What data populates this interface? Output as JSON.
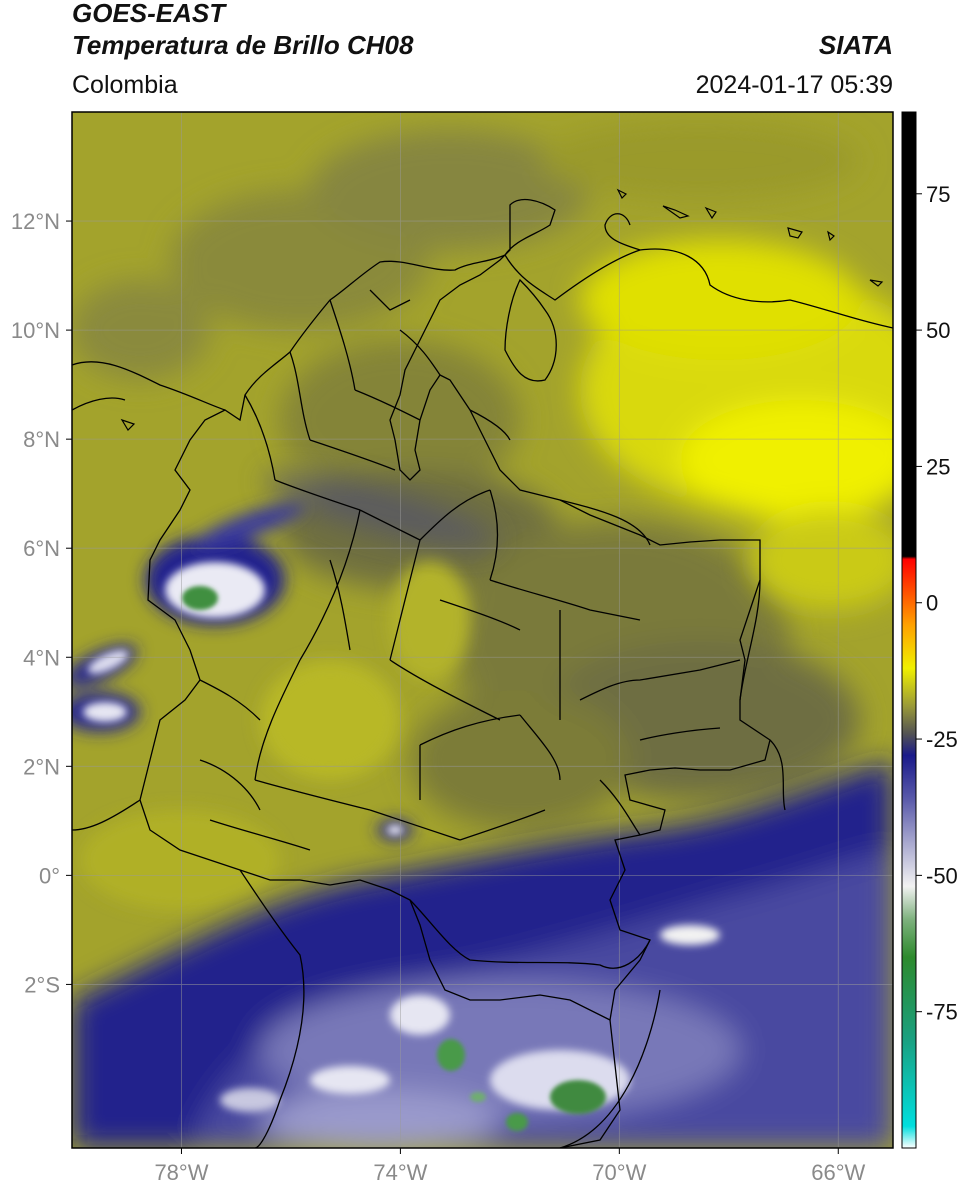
{
  "header": {
    "title_line1": "GOES-EAST",
    "title_line2": "Temperatura de Brillo CH08",
    "brand": "SIATA",
    "region": "Colombia",
    "timestamp": "2024-01-17 05:39"
  },
  "map": {
    "lon_ticks": [
      {
        "label": "78°W",
        "value": -78
      },
      {
        "label": "74°W",
        "value": -74
      },
      {
        "label": "70°W",
        "value": -70
      },
      {
        "label": "66°W",
        "value": -66
      }
    ],
    "lat_ticks": [
      {
        "label": "12°N",
        "value": 12
      },
      {
        "label": "10°N",
        "value": 10
      },
      {
        "label": "8°N",
        "value": 8
      },
      {
        "label": "6°N",
        "value": 6
      },
      {
        "label": "4°N",
        "value": 4
      },
      {
        "label": "2°N",
        "value": 2
      },
      {
        "label": "0°",
        "value": 0
      },
      {
        "label": "2°S",
        "value": -2
      }
    ],
    "lon_range": [
      -80,
      -65
    ],
    "lat_range": [
      -5,
      14
    ],
    "gridlines": true
  },
  "colorbar": {
    "ticks": [
      {
        "label": "75",
        "value": 75
      },
      {
        "label": "50",
        "value": 50
      },
      {
        "label": "25",
        "value": 25
      },
      {
        "label": "0",
        "value": 0
      },
      {
        "label": "-25",
        "value": -25
      },
      {
        "label": "-50",
        "value": -50
      },
      {
        "label": "-75",
        "value": -75
      }
    ],
    "range": [
      -100,
      90
    ],
    "stops": [
      {
        "value": -100,
        "color": "#ffffff"
      },
      {
        "value": -96,
        "color": "#00dede"
      },
      {
        "value": -80,
        "color": "#1aa080"
      },
      {
        "value": -65,
        "color": "#2d8a2d"
      },
      {
        "value": -58,
        "color": "#7fb27f"
      },
      {
        "value": -52,
        "color": "#f2f2f2"
      },
      {
        "value": -44,
        "color": "#a8a8cf"
      },
      {
        "value": -36,
        "color": "#5a5aaa"
      },
      {
        "value": -28,
        "color": "#1a1a8a"
      },
      {
        "value": -24,
        "color": "#535353"
      },
      {
        "value": -19,
        "color": "#999938"
      },
      {
        "value": -12,
        "color": "#f0f000"
      },
      {
        "value": -4,
        "color": "#ffa000"
      },
      {
        "value": 8,
        "color": "#ff0000"
      },
      {
        "value": 8.5,
        "color": "#000000"
      },
      {
        "value": 90,
        "color": "#000000"
      }
    ]
  },
  "colors": {
    "mid_level_dry": "#9a9a2a",
    "dry": "#e9e900",
    "moist": "#7a7a3a",
    "cold_cloud": "#1f1f8f",
    "very_cold": "#f2f2f2",
    "coldest": "#3f9a3f"
  }
}
